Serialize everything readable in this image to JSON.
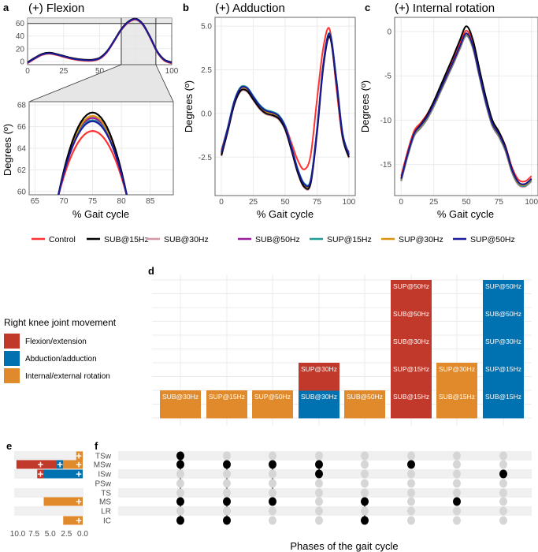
{
  "legend": {
    "series": [
      {
        "name": "Control",
        "color": "#ff3333"
      },
      {
        "name": "SUB@15Hz",
        "color": "#000000"
      },
      {
        "name": "SUB@30Hz",
        "color": "#d495a5"
      },
      {
        "name": "SUB@50Hz",
        "color": "#9b1d9b"
      },
      {
        "name": "SUP@15Hz",
        "color": "#1a9e96"
      },
      {
        "name": "SUP@30Hz",
        "color": "#d9930f"
      },
      {
        "name": "SUP@50Hz",
        "color": "#1b1b9e"
      }
    ]
  },
  "chart_data": [
    {
      "panel": "a",
      "type": "line",
      "title": "(+) Flexion",
      "xlabel": "% Gait cycle",
      "ylabel": "Degrees (º)",
      "xlim": [
        0,
        100
      ],
      "ylim": [
        -5,
        68
      ],
      "xticks": [
        "0",
        "25",
        "50",
        "75",
        "100"
      ],
      "yticks": [
        "0",
        "20",
        "40",
        "60"
      ],
      "x": [
        0,
        5,
        10,
        15,
        20,
        25,
        30,
        35,
        40,
        45,
        50,
        55,
        60,
        65,
        70,
        75,
        80,
        85,
        90,
        95,
        100
      ],
      "base": [
        -2,
        5,
        11,
        13,
        11,
        8,
        5,
        3,
        2,
        2,
        5,
        15,
        32,
        50,
        62,
        66.5,
        58,
        38,
        15,
        2,
        -2
      ],
      "offsets": [
        -0.9,
        0.8,
        0.4,
        0.3,
        0.1,
        0.5,
        0
      ]
    },
    {
      "panel": "a-inset",
      "type": "line",
      "xlabel": "% Gait cycle",
      "xlim": [
        64,
        89
      ],
      "ylim": [
        59.7,
        68.3
      ],
      "xticks": [
        "65",
        "70",
        "75",
        "80",
        "85"
      ],
      "yticks": [
        "60",
        "62",
        "64",
        "66",
        "68"
      ],
      "peak_x": 75,
      "peaks": [
        65.6,
        67.3,
        66.9,
        66.8,
        66.6,
        67.0,
        66.5
      ]
    },
    {
      "panel": "b",
      "type": "line",
      "title": "(+) Adduction",
      "xlabel": "% Gait cycle",
      "ylabel": "Degrees (º)",
      "xlim": [
        -5,
        105
      ],
      "ylim": [
        -4.7,
        5.5
      ],
      "xticks": [
        "0",
        "25",
        "50",
        "75",
        "100"
      ],
      "yticks": [
        "5.0",
        "2.5",
        "0.0",
        "-2.5"
      ],
      "x": [
        0,
        5,
        10,
        15,
        20,
        25,
        30,
        35,
        40,
        45,
        50,
        55,
        60,
        65,
        70,
        75,
        80,
        85,
        90,
        95,
        100
      ],
      "base": [
        -2.3,
        -0.9,
        0.6,
        1.4,
        1.4,
        0.9,
        0.4,
        0.1,
        0.0,
        -0.2,
        -0.8,
        -2.0,
        -3.3,
        -4.1,
        -3.9,
        -1.0,
        2.8,
        4.5,
        2.0,
        -1.2,
        -2.4
      ],
      "control": [
        -2.1,
        -0.8,
        0.6,
        1.4,
        1.4,
        0.9,
        0.4,
        0.1,
        0.0,
        -0.2,
        -0.7,
        -1.7,
        -2.7,
        -3.2,
        -2.4,
        0.8,
        3.8,
        4.8,
        1.6,
        -1.4,
        -2.2
      ],
      "offsets": [
        0,
        -0.1,
        -0.15,
        0,
        0.1,
        0,
        0.05
      ]
    },
    {
      "panel": "c",
      "type": "line",
      "title": "(+) Internal rotation",
      "xlabel": "% Gait cycle",
      "ylabel": "Degrees (º)",
      "xlim": [
        -5,
        105
      ],
      "ylim": [
        -18.5,
        1.6
      ],
      "xticks": [
        "0",
        "25",
        "50",
        "75",
        "100"
      ],
      "yticks": [
        "0",
        "-5",
        "-10",
        "-15"
      ],
      "x": [
        0,
        5,
        10,
        15,
        20,
        25,
        30,
        35,
        40,
        45,
        50,
        55,
        60,
        65,
        70,
        75,
        80,
        85,
        90,
        95,
        100
      ],
      "base": [
        -16.6,
        -13.8,
        -11.5,
        -10.6,
        -9.6,
        -8.2,
        -6.6,
        -5.0,
        -3.4,
        -1.7,
        -0.2,
        -1.6,
        -4.8,
        -7.9,
        -10.4,
        -11.6,
        -13.2,
        -15.6,
        -17.0,
        -17.2,
        -16.6
      ],
      "offsets": [
        0.3,
        0.8,
        -0.3,
        -0.2,
        -0.2,
        -0.1,
        0
      ]
    },
    {
      "panel": "d",
      "type": "bar",
      "stacked": true,
      "legend_title": "Right knee joint movement",
      "groups": [
        {
          "name": "Flexion/extension",
          "color": "#c0392b"
        },
        {
          "name": "Abduction/adduction",
          "color": "#0072b2"
        },
        {
          "name": "Internal/external rotation",
          "color": "#e08a2c"
        }
      ],
      "columns": [
        {
          "group": 2,
          "labels": [
            "SUB@30Hz"
          ]
        },
        {
          "group": 2,
          "labels": [
            "SUP@15Hz"
          ]
        },
        {
          "group": 2,
          "labels": [
            "SUP@50Hz"
          ]
        },
        {
          "group": [
            1,
            0
          ],
          "labels": [
            "SUB@30Hz",
            "SUP@30Hz"
          ]
        },
        {
          "group": 2,
          "labels": [
            "SUB@50Hz"
          ]
        },
        {
          "group": 0,
          "labels": [
            "SUB@15Hz",
            "SUP@15Hz",
            "SUB@30Hz",
            "SUB@50Hz",
            "SUP@50Hz"
          ]
        },
        {
          "group": 2,
          "labels": [
            "SUB@15Hz",
            "SUP@30Hz"
          ]
        },
        {
          "group": 1,
          "labels": [
            "SUB@15Hz",
            "SUP@15Hz",
            "SUP@30Hz",
            "SUB@50Hz",
            "SUP@50Hz"
          ]
        }
      ]
    },
    {
      "panel": "e",
      "type": "bar",
      "orientation": "horizontal",
      "xlim": [
        10.3,
        0
      ],
      "xticks": [
        "10.0",
        "7.5",
        "5.0",
        "2.5",
        "0.0"
      ],
      "tick_values": [
        10,
        7.5,
        5,
        2.5,
        0
      ],
      "rows": [
        "TSw",
        "MSw",
        "ISw",
        "PSw",
        "TS",
        "MS",
        "LR",
        "IC"
      ],
      "segments": [
        {
          "row": 0,
          "group": 2,
          "from": 0,
          "to": 1
        },
        {
          "row": 1,
          "group": 2,
          "from": 0,
          "to": 3
        },
        {
          "row": 1,
          "group": 1,
          "from": 3,
          "to": 4
        },
        {
          "row": 1,
          "group": 0,
          "from": 4,
          "to": 10.2
        },
        {
          "row": 2,
          "group": 1,
          "from": 0,
          "to": 6
        },
        {
          "row": 2,
          "group": 0,
          "from": 6,
          "to": 7
        },
        {
          "row": 5,
          "group": 2,
          "from": 0,
          "to": 6
        },
        {
          "row": 7,
          "group": 2,
          "from": 0,
          "to": 3
        }
      ],
      "marker": "+"
    },
    {
      "panel": "f",
      "type": "scatter",
      "xlabel": "Phases of the gait cycle",
      "rows": [
        "TSw",
        "MSw",
        "ISw",
        "PSw",
        "TS",
        "MS",
        "LR",
        "IC"
      ],
      "active": [
        [
          0,
          1,
          5,
          7
        ],
        [
          1,
          5,
          7
        ],
        [
          1,
          5
        ],
        [
          1,
          2
        ],
        [
          5,
          7
        ],
        [
          1
        ],
        [
          5
        ],
        [
          2
        ]
      ]
    }
  ],
  "panel_labels": {
    "a": "a",
    "b": "b",
    "c": "c",
    "d": "d",
    "e": "e",
    "f": "f"
  }
}
